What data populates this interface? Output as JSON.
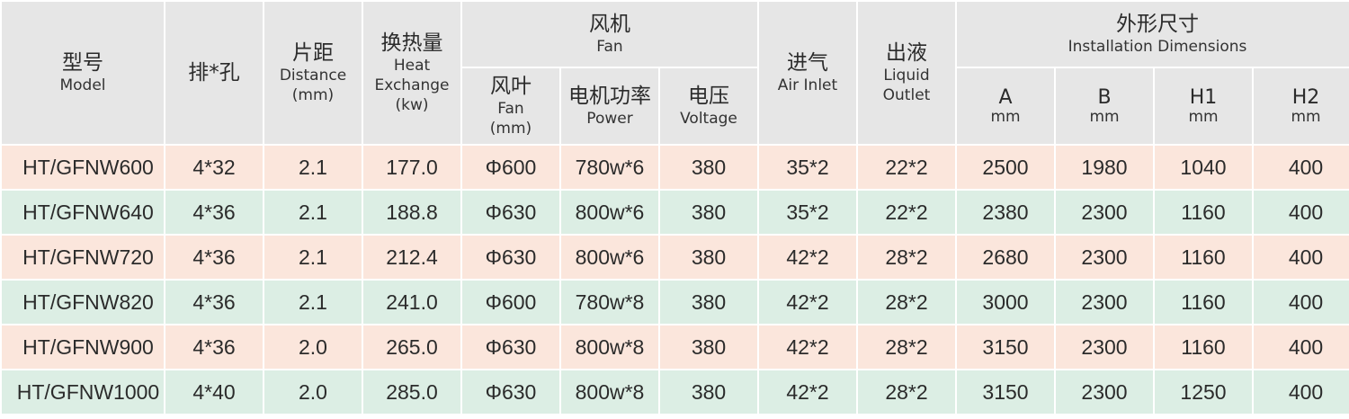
{
  "header": {
    "model": {
      "zh": "型号",
      "en": "Model"
    },
    "holes": {
      "zh": "排*孔"
    },
    "distance": {
      "zh": "片距",
      "en": "Distance",
      "unit": "(mm)"
    },
    "heat": {
      "zh": "换热量",
      "en1": "Heat",
      "en2": "Exchange",
      "unit": "(kw)"
    },
    "fan": {
      "zh": "风机",
      "en": "Fan"
    },
    "fan_blade": {
      "zh": "风叶",
      "en": "Fan",
      "unit": "(mm)"
    },
    "power": {
      "zh": "电机功率",
      "en": "Power"
    },
    "voltage": {
      "zh": "电压",
      "en": "Voltage"
    },
    "air_inlet": {
      "zh": "进气",
      "en": "Air Inlet"
    },
    "liquid_outlet": {
      "zh": "出液",
      "en1": "Liquid",
      "en2": "Outlet"
    },
    "dimensions": {
      "zh": "外形尺寸",
      "en": "Installation Dimensions"
    },
    "dim_a": {
      "label": "A",
      "unit": "mm"
    },
    "dim_b": {
      "label": "B",
      "unit": "mm"
    },
    "dim_h1": {
      "label": "H1",
      "unit": "mm"
    },
    "dim_h2": {
      "label": "H2",
      "unit": "mm"
    }
  },
  "rows": [
    {
      "model": "HT/GFNW600",
      "holes": "4*32",
      "distance": "2.1",
      "heat": "177.0",
      "fan": "Φ600",
      "power": "780w*6",
      "voltage": "380",
      "air_inlet": "35*2",
      "liquid_outlet": "22*2",
      "a": "2500",
      "b": "1980",
      "h1": "1040",
      "h2": "400"
    },
    {
      "model": "HT/GFNW640",
      "holes": "4*36",
      "distance": "2.1",
      "heat": "188.8",
      "fan": "Φ630",
      "power": "800w*6",
      "voltage": "380",
      "air_inlet": "35*2",
      "liquid_outlet": "22*2",
      "a": "2380",
      "b": "2300",
      "h1": "1160",
      "h2": "400"
    },
    {
      "model": "HT/GFNW720",
      "holes": "4*36",
      "distance": "2.1",
      "heat": "212.4",
      "fan": "Φ630",
      "power": "800w*6",
      "voltage": "380",
      "air_inlet": "42*2",
      "liquid_outlet": "28*2",
      "a": "2680",
      "b": "2300",
      "h1": "1160",
      "h2": "400"
    },
    {
      "model": "HT/GFNW820",
      "holes": "4*36",
      "distance": "2.1",
      "heat": "241.0",
      "fan": "Φ600",
      "power": "780w*8",
      "voltage": "380",
      "air_inlet": "42*2",
      "liquid_outlet": "28*2",
      "a": "3000",
      "b": "2300",
      "h1": "1160",
      "h2": "400"
    },
    {
      "model": "HT/GFNW900",
      "holes": "4*36",
      "distance": "2.0",
      "heat": "265.0",
      "fan": "Φ630",
      "power": "800w*8",
      "voltage": "380",
      "air_inlet": "42*2",
      "liquid_outlet": "28*2",
      "a": "3150",
      "b": "2300",
      "h1": "1160",
      "h2": "400"
    },
    {
      "model": "HT/GFNW1000",
      "holes": "4*40",
      "distance": "2.0",
      "heat": "285.0",
      "fan": "Φ630",
      "power": "800w*8",
      "voltage": "380",
      "air_inlet": "42*2",
      "liquid_outlet": "28*2",
      "a": "3150",
      "b": "2300",
      "h1": "1250",
      "h2": "400"
    }
  ],
  "colors": {
    "header_bg": "#e6e6e6",
    "row_odd": "#fbe6dc",
    "row_even": "#dceee4",
    "border": "#ffffff"
  }
}
